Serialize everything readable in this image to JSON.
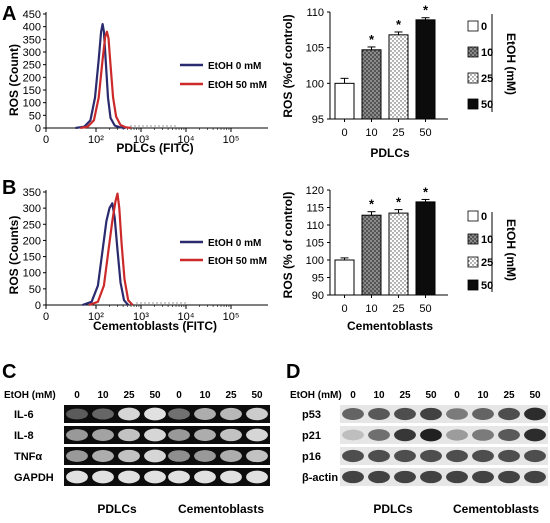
{
  "panels": {
    "A": "A",
    "B": "B",
    "C": "C",
    "D": "D"
  },
  "colors": {
    "etoh0": "#2a2a6e",
    "etoh50": "#cc2a2a"
  },
  "chart_data": [
    {
      "id": "A-histogram",
      "type": "line",
      "xlabel": "PDLCs (FITC)",
      "ylabel": "ROS (Count)",
      "x_scale": "log",
      "x_ticks": [
        "0",
        "10²",
        "10³",
        "10⁴",
        "10⁵"
      ],
      "y_ticks": [
        "0",
        "50",
        "100",
        "150",
        "200",
        "250",
        "300",
        "350",
        "400",
        "450"
      ],
      "ylim": [
        0,
        450
      ],
      "legend": [
        "EtOH 0 mM",
        "EtOH 50 mM"
      ],
      "series": [
        {
          "name": "EtOH 0 mM",
          "color": "#2a2a6e",
          "x": [
            35,
            55,
            75,
            95,
            115,
            130,
            140,
            150,
            165,
            185,
            210,
            260,
            330,
            450
          ],
          "y": [
            0,
            5,
            30,
            120,
            270,
            380,
            410,
            380,
            260,
            120,
            40,
            10,
            3,
            0
          ]
        },
        {
          "name": "EtOH 50 mM",
          "color": "#cc2a2a",
          "x": [
            45,
            65,
            90,
            115,
            140,
            160,
            175,
            190,
            210,
            240,
            280,
            350,
            450,
            600
          ],
          "y": [
            0,
            5,
            30,
            120,
            270,
            360,
            380,
            355,
            250,
            120,
            45,
            12,
            3,
            0
          ]
        }
      ]
    },
    {
      "id": "A-bars",
      "type": "bar",
      "xlabel": "PDLCs",
      "ylabel": "ROS (%of control)",
      "categories": [
        "0",
        "10",
        "25",
        "50"
      ],
      "values": [
        100,
        104.7,
        106.8,
        108.9
      ],
      "errors": [
        0.7,
        0.4,
        0.4,
        0.3
      ],
      "significance": [
        "",
        "*",
        "*",
        "*"
      ],
      "ylim": [
        95,
        110
      ],
      "y_ticks": [
        "95",
        "100",
        "105",
        "110"
      ],
      "legend": [
        "0",
        "10",
        "25",
        "50"
      ],
      "legend_title": "EtOH (mM)"
    },
    {
      "id": "B-histogram",
      "type": "line",
      "xlabel": "Cementoblasts (FITC)",
      "ylabel": "ROS (Counts)",
      "x_scale": "log",
      "x_ticks": [
        "0",
        "10²",
        "10³",
        "10⁴",
        "10⁵"
      ],
      "y_ticks": [
        "0",
        "50",
        "100",
        "150",
        "200",
        "250",
        "300",
        "350"
      ],
      "ylim": [
        0,
        350
      ],
      "legend": [
        "EtOH 0 mM",
        "EtOH 50 mM"
      ],
      "series": [
        {
          "name": "EtOH 0 mM",
          "color": "#2a2a6e",
          "x": [
            50,
            80,
            110,
            140,
            170,
            200,
            230,
            260,
            300,
            350,
            420,
            520
          ],
          "y": [
            0,
            10,
            60,
            170,
            260,
            300,
            315,
            270,
            170,
            70,
            15,
            0
          ]
        },
        {
          "name": "EtOH 50 mM",
          "color": "#cc2a2a",
          "x": [
            70,
            110,
            150,
            190,
            230,
            270,
            300,
            330,
            370,
            430,
            520,
            650
          ],
          "y": [
            0,
            10,
            60,
            170,
            260,
            320,
            345,
            300,
            190,
            80,
            15,
            0
          ]
        }
      ]
    },
    {
      "id": "B-bars",
      "type": "bar",
      "xlabel": "Cementoblasts",
      "ylabel": "ROS (% of control)",
      "categories": [
        "0",
        "10",
        "25",
        "50"
      ],
      "values": [
        100,
        112.8,
        113.4,
        116.6
      ],
      "errors": [
        0.6,
        1.0,
        1.0,
        0.7
      ],
      "significance": [
        "",
        "*",
        "*",
        "*"
      ],
      "ylim": [
        90,
        120
      ],
      "y_ticks": [
        "90",
        "95",
        "100",
        "105",
        "110",
        "115",
        "120"
      ],
      "legend": [
        "0",
        "10",
        "25",
        "50"
      ],
      "legend_title": "EtOH (mM)"
    }
  ],
  "gels": {
    "C": {
      "row_label": "EtOH (mM)",
      "lanes": [
        "0",
        "10",
        "25",
        "50"
      ],
      "rows": [
        "IL-6",
        "IL-8",
        "TNFα",
        "GAPDH"
      ],
      "groups": [
        "PDLCs",
        "Cementoblasts"
      ],
      "band_intensity": {
        "PDLCs": [
          [
            0.25,
            0.3,
            0.85,
            0.9
          ],
          [
            0.55,
            0.6,
            0.75,
            0.85
          ],
          [
            0.55,
            0.65,
            0.75,
            0.85
          ],
          [
            0.9,
            0.9,
            0.9,
            0.9
          ]
        ],
        "Cementoblasts": [
          [
            0.35,
            0.65,
            0.7,
            0.8
          ],
          [
            0.55,
            0.65,
            0.75,
            0.85
          ],
          [
            0.5,
            0.55,
            0.65,
            0.75
          ],
          [
            0.9,
            0.9,
            0.9,
            0.9
          ]
        ]
      }
    },
    "D": {
      "row_label": "EtOH (mM)",
      "lanes": [
        "0",
        "10",
        "25",
        "50"
      ],
      "rows": [
        "p53",
        "p21",
        "p16",
        "β-actin"
      ],
      "groups": [
        "PDLCs",
        "Cementoblasts"
      ],
      "band_intensity": {
        "PDLCs": [
          [
            0.6,
            0.65,
            0.7,
            0.75
          ],
          [
            0.2,
            0.55,
            0.8,
            0.9
          ],
          [
            0.7,
            0.7,
            0.7,
            0.7
          ],
          [
            0.75,
            0.75,
            0.75,
            0.75
          ]
        ],
        "Cementoblasts": [
          [
            0.5,
            0.6,
            0.7,
            0.85
          ],
          [
            0.35,
            0.5,
            0.65,
            0.85
          ],
          [
            0.7,
            0.7,
            0.7,
            0.7
          ],
          [
            0.75,
            0.75,
            0.75,
            0.75
          ]
        ]
      }
    }
  }
}
